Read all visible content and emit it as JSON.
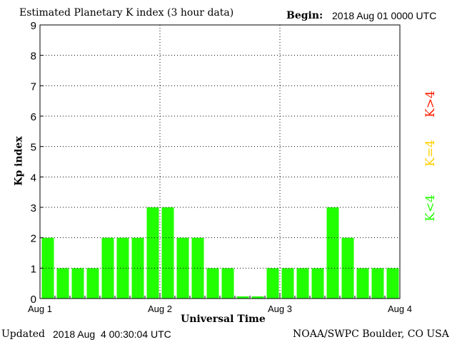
{
  "header": {
    "title": "Estimated Planetary K index (3 hour data)",
    "begin_label": "Begin:",
    "begin_value": "2018 Aug 01 0000 UTC"
  },
  "footer": {
    "updated_label": "Updated",
    "updated_value": "2018 Aug  4 00:30:04 UTC",
    "source": "NOAA/SWPC Boulder, CO USA"
  },
  "legend": {
    "items": [
      {
        "label": "K>4",
        "color": "#ff2000"
      },
      {
        "label": "K=4",
        "color": "#ffd000"
      },
      {
        "label": "K<4",
        "color": "#22ff00"
      }
    ]
  },
  "chart_data": {
    "type": "bar",
    "title": "Estimated Planetary K index (3 hour data)",
    "xlabel": "Universal Time",
    "ylabel": "Kp index",
    "ylim": [
      0,
      9
    ],
    "yticks": [
      "0",
      "1",
      "2",
      "3",
      "4",
      "5",
      "6",
      "7",
      "8",
      "9"
    ],
    "xticks": [
      "Aug 1",
      "Aug 2",
      "Aug 3",
      "Aug 4"
    ],
    "grid": true,
    "bar_color": "#22ff00",
    "values": [
      2,
      1,
      1,
      1,
      2,
      2,
      2,
      3,
      3,
      2,
      2,
      1,
      1,
      0,
      0,
      1,
      1,
      1,
      1,
      3,
      2,
      1,
      1,
      1
    ]
  }
}
